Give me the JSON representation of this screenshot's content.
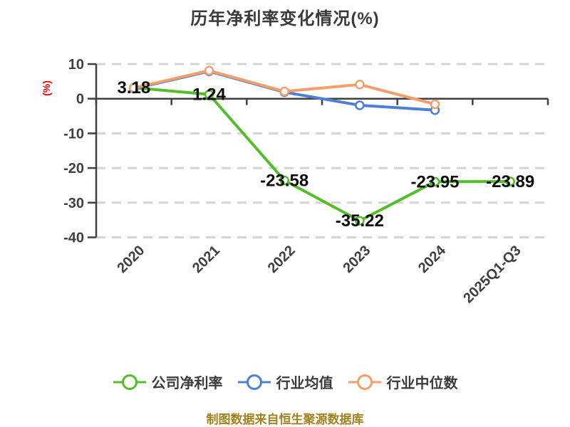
{
  "title": "历年净利率变化情况(%)",
  "y_axis_label": "(%)",
  "source_note": "制图数据来自恒生聚源数据库",
  "colors": {
    "background": "#ffffff",
    "title": "#3a3a3a",
    "axis": "#3f3f3f",
    "grid": "#d4d4d4",
    "tick_label": "#3f3f3f",
    "y_axis_label": "#e60000",
    "data_label": "#0d0d0d",
    "legend_label": "#3b3b3b",
    "source_note": "#a0821e"
  },
  "chart_data": {
    "type": "line",
    "title": "历年净利率变化情况(%)",
    "categories": [
      "2020",
      "2021",
      "2022",
      "2023",
      "2024",
      "2025Q1-Q3"
    ],
    "series": [
      {
        "name": "公司净利率",
        "slug": "company-net-margin",
        "color": "#53bd2a",
        "values": [
          3.18,
          1.24,
          -23.58,
          -35.22,
          -23.95,
          -23.89
        ],
        "point_labels": [
          "3.18",
          "1.24",
          "-23.58",
          "-35.22",
          "-23.95",
          "-23.89"
        ]
      },
      {
        "name": "行业均值",
        "slug": "industry-mean",
        "color": "#4b80d6",
        "values": [
          2.9,
          7.9,
          1.9,
          -1.9,
          -3.3,
          null
        ],
        "point_labels": []
      },
      {
        "name": "行业中位数",
        "slug": "industry-median",
        "color": "#f59e6c",
        "values": [
          3.1,
          8.1,
          2.1,
          4.1,
          -1.6,
          null
        ],
        "point_labels": []
      }
    ],
    "ylabel": "(%)",
    "ylim": [
      -40,
      10
    ],
    "yticks": [
      10,
      0,
      -10,
      -20,
      -30,
      -40
    ],
    "xtick_rotation_deg": 45,
    "grid": "horizontal-dashed",
    "marker": "circle-white-fill",
    "legend_position": "bottom"
  }
}
